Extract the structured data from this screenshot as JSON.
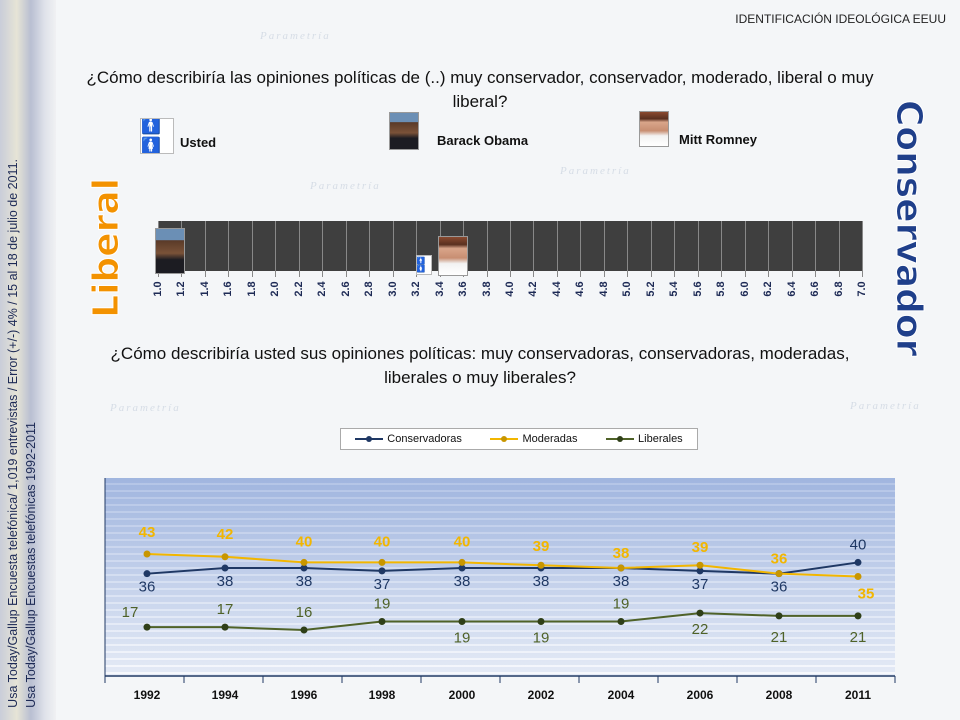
{
  "header": {
    "title": "IDENTIFICACIÓN IDEOLÓGICA EEUU"
  },
  "source": {
    "line1": "Usa Today/Gallup Encuesta telefónica/ 1,019 entrevistas / Error (+/-) 4% / 15 al 18 de julio de 2011.",
    "line2": "Usa Today/Gallup Encuestas telefónicas 1992-2011"
  },
  "question1": "¿Cómo describiría las opiniones políticas de (..) muy conservador, conservador, moderado, liberal o muy liberal?",
  "question2": "¿Cómo describiría usted sus opiniones políticas: muy conservadoras, conservadoras, moderadas, liberales o muy liberales?",
  "people": [
    {
      "label": "Usted",
      "scale_value": 3.3
    },
    {
      "label": "Barack Obama",
      "scale_value": 1.1
    },
    {
      "label": "Mitt Romney",
      "scale_value": 3.5
    }
  ],
  "scale": {
    "left_label": "Liberal",
    "right_label": "Conservador",
    "min": 1.0,
    "max": 7.0,
    "step": 0.2,
    "ticks": [
      "1.0",
      "1.2",
      "1.4",
      "1.6",
      "1.8",
      "2.0",
      "2.2",
      "2.4",
      "2.6",
      "2.8",
      "3.0",
      "3.2",
      "3.4",
      "3.6",
      "3.8",
      "4.0",
      "4.2",
      "4.4",
      "4.6",
      "4.8",
      "5.0",
      "5.2",
      "5.4",
      "5.6",
      "5.8",
      "6.0",
      "6.2",
      "6.4",
      "6.6",
      "6.8",
      "7.0"
    ]
  },
  "watermark": "Parametría",
  "chart_data": {
    "type": "line",
    "categories": [
      "1992",
      "1994",
      "1996",
      "1998",
      "2000",
      "2002",
      "2004",
      "2006",
      "2008",
      "2011"
    ],
    "ylim": [
      0,
      70
    ],
    "legend": "top",
    "series": [
      {
        "name": "Conservadoras",
        "color": "#1f3864",
        "values": [
          36,
          38,
          38,
          37,
          38,
          38,
          38,
          37,
          36,
          40
        ]
      },
      {
        "name": "Moderadas",
        "color": "#f2b600",
        "values": [
          43,
          42,
          40,
          40,
          40,
          39,
          38,
          39,
          36,
          35
        ]
      },
      {
        "name": "Liberales",
        "color": "#4f6228",
        "values": [
          17,
          17,
          16,
          19,
          19,
          19,
          19,
          22,
          21,
          21
        ]
      }
    ]
  }
}
